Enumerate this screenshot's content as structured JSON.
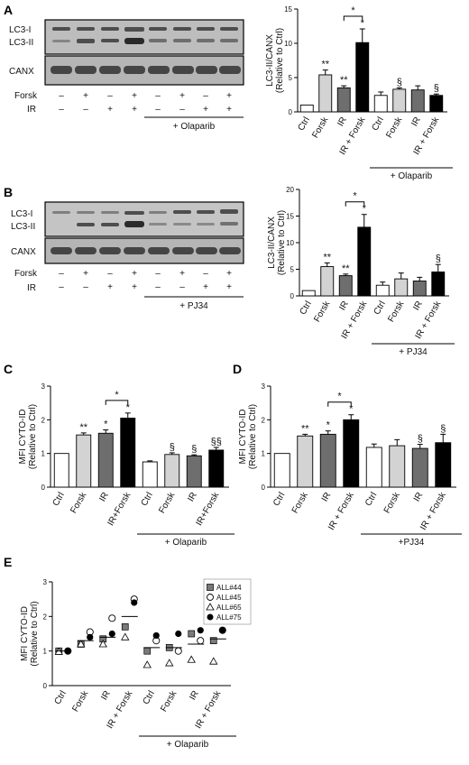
{
  "panel_labels": [
    "A",
    "B",
    "C",
    "D",
    "E"
  ],
  "blots": [
    {
      "bands_top": [
        "LC3-I",
        "LC3-II"
      ],
      "bands_bottom": [
        "CANX"
      ],
      "rows": [
        {
          "label": "Forsk",
          "signs": [
            "–",
            "+",
            "–",
            "+",
            "–",
            "+",
            "–",
            "+"
          ]
        },
        {
          "label": "IR",
          "signs": [
            "–",
            "–",
            "+",
            "+",
            "–",
            "–",
            "+",
            "+"
          ]
        }
      ],
      "treatment": "+ Olaparib"
    },
    {
      "bands_top": [
        "LC3-I",
        "LC3-II"
      ],
      "bands_bottom": [
        "CANX"
      ],
      "rows": [
        {
          "label": "Forsk",
          "signs": [
            "–",
            "+",
            "–",
            "+",
            "–",
            "+",
            "–",
            "+"
          ]
        },
        {
          "label": "IR",
          "signs": [
            "–",
            "–",
            "+",
            "+",
            "–",
            "–",
            "+",
            "+"
          ]
        }
      ],
      "treatment": "+ PJ34"
    }
  ],
  "chart_data": [
    {
      "id": "A",
      "type": "bar",
      "ylabel": "LC3-II/CANX\n(Relative to Ctrl)",
      "ylim": [
        0,
        15
      ],
      "yticks": [
        0,
        5,
        10,
        15
      ],
      "categories": [
        "Ctrl",
        "Forsk",
        "IR",
        "IR + Forsk",
        "Ctrl",
        "Forsk",
        "IR",
        "IR + Forsk"
      ],
      "values": [
        1.0,
        5.4,
        3.5,
        10.1,
        2.4,
        3.3,
        3.2,
        2.4
      ],
      "errors": [
        0.0,
        0.7,
        0.3,
        2.0,
        0.5,
        0.2,
        0.6,
        0.2
      ],
      "colors": [
        "#ffffff",
        "#d3d3d3",
        "#6e6e6e",
        "#000000",
        "#ffffff",
        "#d3d3d3",
        "#6e6e6e",
        "#000000"
      ],
      "marks": [
        "",
        "**",
        "**",
        "*",
        "",
        "§",
        "",
        "§"
      ],
      "bracket": {
        "from": 2,
        "to": 3,
        "label": "*"
      },
      "group_label": "+ Olaparib",
      "group_start": 4
    },
    {
      "id": "B",
      "type": "bar",
      "ylabel": "LC3-II/CANX\n(Relative to Ctrl)",
      "ylim": [
        0,
        20
      ],
      "yticks": [
        0,
        5,
        10,
        15,
        20
      ],
      "categories": [
        "Ctrl",
        "Forsk",
        "IR",
        "IR + Forsk",
        "Ctrl",
        "Forsk",
        "IR",
        "IR + Forsk"
      ],
      "values": [
        1.0,
        5.5,
        3.8,
        12.9,
        2.0,
        3.2,
        2.8,
        4.5
      ],
      "errors": [
        0.0,
        0.7,
        0.3,
        2.4,
        0.6,
        1.1,
        0.7,
        1.4
      ],
      "colors": [
        "#ffffff",
        "#d3d3d3",
        "#6e6e6e",
        "#000000",
        "#ffffff",
        "#d3d3d3",
        "#6e6e6e",
        "#000000"
      ],
      "marks": [
        "",
        "**",
        "**",
        "*",
        "",
        "",
        "",
        "§"
      ],
      "bracket": {
        "from": 2,
        "to": 3,
        "label": "*"
      },
      "group_label": "+ PJ34",
      "group_start": 4
    },
    {
      "id": "C",
      "type": "bar",
      "ylabel": "MFI CYTO-ID\n(Relative to Ctrl)",
      "ylim": [
        0,
        3
      ],
      "yticks": [
        0,
        1,
        2,
        3
      ],
      "categories": [
        "Ctrl",
        "Forsk",
        "IR",
        "IR+Forsk",
        "Ctrl",
        "Forsk",
        "IR",
        "IR+Forsk"
      ],
      "values": [
        1.0,
        1.55,
        1.6,
        2.05,
        0.75,
        0.97,
        0.93,
        1.1
      ],
      "errors": [
        0.0,
        0.06,
        0.1,
        0.15,
        0.03,
        0.05,
        0.03,
        0.08
      ],
      "colors": [
        "#ffffff",
        "#d3d3d3",
        "#6e6e6e",
        "#000000",
        "#ffffff",
        "#d3d3d3",
        "#6e6e6e",
        "#000000"
      ],
      "marks": [
        "",
        "**",
        "*",
        "*",
        "",
        "§",
        "§",
        "§§"
      ],
      "bracket": {
        "from": 2,
        "to": 3,
        "label": "*"
      },
      "group_label": "+ Olaparib",
      "group_start": 4
    },
    {
      "id": "D",
      "type": "bar",
      "ylabel": "MFI CYTO-ID\n(Relative to Ctrl)",
      "ylim": [
        0,
        3
      ],
      "yticks": [
        0,
        1,
        2,
        3
      ],
      "categories": [
        "Ctrl",
        "Forsk",
        "IR",
        "IR + Forsk",
        "Ctrl",
        "Forsk",
        "IR",
        "IR + Forsk"
      ],
      "values": [
        1.0,
        1.52,
        1.57,
        2.0,
        1.18,
        1.23,
        1.15,
        1.32
      ],
      "errors": [
        0.0,
        0.05,
        0.1,
        0.15,
        0.1,
        0.18,
        0.12,
        0.25
      ],
      "colors": [
        "#ffffff",
        "#d3d3d3",
        "#6e6e6e",
        "#000000",
        "#ffffff",
        "#d3d3d3",
        "#6e6e6e",
        "#000000"
      ],
      "marks": [
        "",
        "**",
        "*",
        "*",
        "",
        "",
        "§",
        "§"
      ],
      "bracket": {
        "from": 2,
        "to": 3,
        "label": "*"
      },
      "group_label": "+PJ34",
      "group_start": 4
    },
    {
      "id": "E",
      "type": "scatter",
      "ylabel": "MFI CYTO-ID\n(Relative to Ctrl)",
      "ylim": [
        0,
        3
      ],
      "yticks": [
        0,
        1,
        2,
        3
      ],
      "categories": [
        "Ctrl",
        "Forsk",
        "IR",
        "IR + Forsk",
        "Ctrl",
        "Forsk",
        "IR",
        "IR + Forsk"
      ],
      "means": [
        1.0,
        1.3,
        1.4,
        2.0,
        1.1,
        1.1,
        1.2,
        1.35
      ],
      "series": [
        {
          "name": "ALL#44",
          "marker": "square",
          "values": [
            1.0,
            1.2,
            1.35,
            1.7,
            1.0,
            1.1,
            1.5,
            1.3
          ]
        },
        {
          "name": "ALL#45",
          "marker": "circle-open",
          "values": [
            1.0,
            1.55,
            1.95,
            2.5,
            1.3,
            1.0,
            1.3,
            1.6
          ]
        },
        {
          "name": "ALL#65",
          "marker": "triangle-open",
          "values": [
            0.98,
            1.2,
            1.2,
            1.4,
            0.6,
            0.65,
            0.75,
            0.7
          ]
        },
        {
          "name": "ALL#75",
          "marker": "circle-filled",
          "values": [
            1.0,
            1.4,
            1.5,
            2.4,
            1.45,
            1.5,
            1.6,
            1.6
          ]
        }
      ],
      "group_label": "+ Olaparib",
      "group_start": 4
    }
  ]
}
